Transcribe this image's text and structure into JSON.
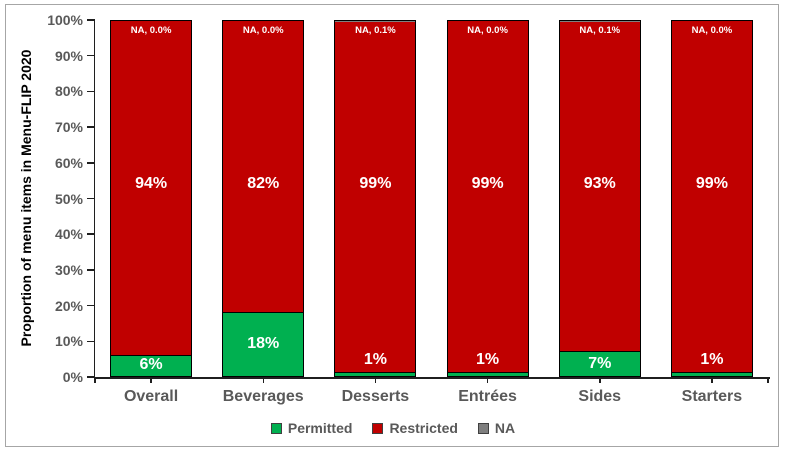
{
  "figure": {
    "background": "#ffffff",
    "frame_border_color": "#a6a6a6"
  },
  "chart_data": {
    "type": "bar",
    "stacked": true,
    "orientation": "vertical",
    "title": "",
    "xlabel": "",
    "ylabel": "Proportion of menu items in Menu-FLIP 2020",
    "ylim": [
      0,
      100
    ],
    "ytick_step": 10,
    "ytick_labels": [
      "0%",
      "10%",
      "20%",
      "30%",
      "40%",
      "50%",
      "60%",
      "70%",
      "80%",
      "90%",
      "100%"
    ],
    "grid": false,
    "categories": [
      "Overall",
      "Beverages",
      "Desserts",
      "Entrées",
      "Sides",
      "Starters"
    ],
    "series": [
      {
        "name": "Permitted",
        "color": "#00b050",
        "values": [
          6,
          18,
          1,
          1,
          7,
          1
        ],
        "labels": [
          "6%",
          "18%",
          "1%",
          "1%",
          "7%",
          "1%"
        ],
        "label_color": "#ffffff"
      },
      {
        "name": "Restricted",
        "color": "#c00000",
        "values": [
          94,
          82,
          99,
          99,
          93,
          99
        ],
        "labels": [
          "94%",
          "82%",
          "99%",
          "99%",
          "93%",
          "99%"
        ],
        "label_color": "#ffffff"
      },
      {
        "name": "NA",
        "color": "#7f7f7f",
        "values": [
          0.0,
          0.0,
          0.1,
          0.0,
          0.1,
          0.0
        ],
        "labels": [
          "NA, 0.0%",
          "NA, 0.0%",
          "NA, 0.1%",
          "NA, 0.0%",
          "NA, 0.1%",
          "NA, 0.0%"
        ],
        "label_color": "#ffffff"
      }
    ],
    "legend": {
      "position": "bottom",
      "entries": [
        {
          "label": "Permitted",
          "color": "#00b050"
        },
        {
          "label": "Restricted",
          "color": "#c00000"
        },
        {
          "label": "NA",
          "color": "#7f7f7f"
        }
      ]
    },
    "axis_color": "#1f1f1f",
    "tick_label_color": "#595959",
    "category_label_color": "#595959"
  }
}
